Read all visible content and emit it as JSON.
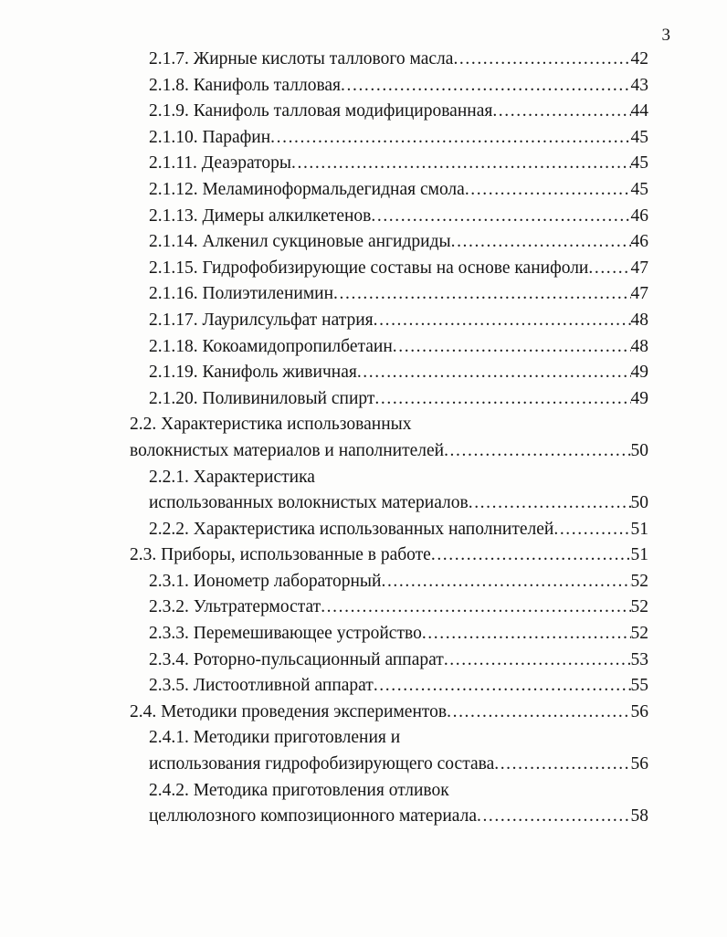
{
  "page": {
    "number": "3"
  },
  "toc": {
    "lines": [
      {
        "indent": "sub",
        "text": "2.1.7. Жирные кислоты таллового масла",
        "page": "42"
      },
      {
        "indent": "sub",
        "text": "2.1.8. Канифоль талловая",
        "page": "43"
      },
      {
        "indent": "sub",
        "text": "2.1.9. Канифоль талловая модифицированная",
        "page": "44"
      },
      {
        "indent": "sub",
        "text": "2.1.10. Парафин",
        "page": "45"
      },
      {
        "indent": "sub",
        "text": "2.1.11. Деаэраторы",
        "page": "45"
      },
      {
        "indent": "sub",
        "text": "2.1.12. Меламиноформальдегидная смола",
        "page": "45"
      },
      {
        "indent": "sub",
        "text": "2.1.13. Димеры алкилкетенов",
        "page": "46"
      },
      {
        "indent": "sub",
        "text": "2.1.14. Алкенил сукциновые ангидриды",
        "page": "46"
      },
      {
        "indent": "sub",
        "text": "2.1.15. Гидрофобизирующие составы на основе канифоли",
        "page": "47"
      },
      {
        "indent": "sub",
        "text": "2.1.16. Полиэтиленимин",
        "page": "47"
      },
      {
        "indent": "sub",
        "text": "2.1.17. Лаурилсульфат натрия",
        "page": "48"
      },
      {
        "indent": "sub",
        "text": "2.1.18. Кокоамидопропилбетаин",
        "page": "48"
      },
      {
        "indent": "sub",
        "text": "2.1.19. Канифоль живичная",
        "page": "49"
      },
      {
        "indent": "sub",
        "text": "2.1.20. Поливиниловый спирт",
        "page": "49"
      },
      {
        "indent": "sec",
        "text": "2.2. Характеристика использованных",
        "page": null
      },
      {
        "indent": "sec",
        "text": "волокнистых материалов и наполнителей",
        "page": "50"
      },
      {
        "indent": "sub",
        "text": "2.2.1. Характеристика",
        "page": null
      },
      {
        "indent": "sub",
        "text": "использованных волокнистых материалов",
        "page": "50"
      },
      {
        "indent": "sub",
        "text": "2.2.2. Характеристика использованных наполнителей",
        "page": "51"
      },
      {
        "indent": "sec",
        "text": "2.3. Приборы, использованные в работе",
        "page": "51"
      },
      {
        "indent": "sub",
        "text": "2.3.1. Ионометр лабораторный",
        "page": "52"
      },
      {
        "indent": "sub",
        "text": "2.3.2. Ультратермостат",
        "page": "52"
      },
      {
        "indent": "sub",
        "text": "2.3.3. Перемешивающее устройство",
        "page": "52"
      },
      {
        "indent": "sub",
        "text": "2.3.4. Роторно-пульсационный аппарат",
        "page": "53"
      },
      {
        "indent": "sub",
        "text": "2.3.5. Листоотливной аппарат",
        "page": "55"
      },
      {
        "indent": "sec",
        "text": "2.4. Методики проведения экспериментов",
        "page": "56"
      },
      {
        "indent": "sub",
        "text": "2.4.1. Методики приготовления и",
        "page": null
      },
      {
        "indent": "sub",
        "text": "использования гидрофобизирующего состава",
        "page": "56"
      },
      {
        "indent": "sub",
        "text": "2.4.2. Методика приготовления отливок",
        "page": null
      },
      {
        "indent": "sub",
        "text": "целлюлозного композиционного материала",
        "page": "58"
      }
    ]
  }
}
